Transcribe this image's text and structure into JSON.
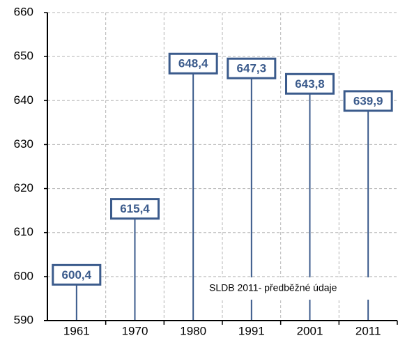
{
  "chart_data": {
    "type": "lollipop",
    "categories": [
      "1961",
      "1970",
      "1980",
      "1991",
      "2001",
      "2011"
    ],
    "values": [
      600.4,
      615.4,
      648.4,
      647.3,
      643.8,
      639.9
    ],
    "value_labels": [
      "600,4",
      "615,4",
      "648,4",
      "647,3",
      "643,8",
      "639,9"
    ],
    "color": "#3b5b8c",
    "ylim": [
      590,
      660
    ],
    "yticks": [
      590,
      600,
      610,
      620,
      630,
      640,
      650,
      660
    ],
    "grid": true,
    "annotation": "SLDB 2011- předběžné údaje"
  }
}
